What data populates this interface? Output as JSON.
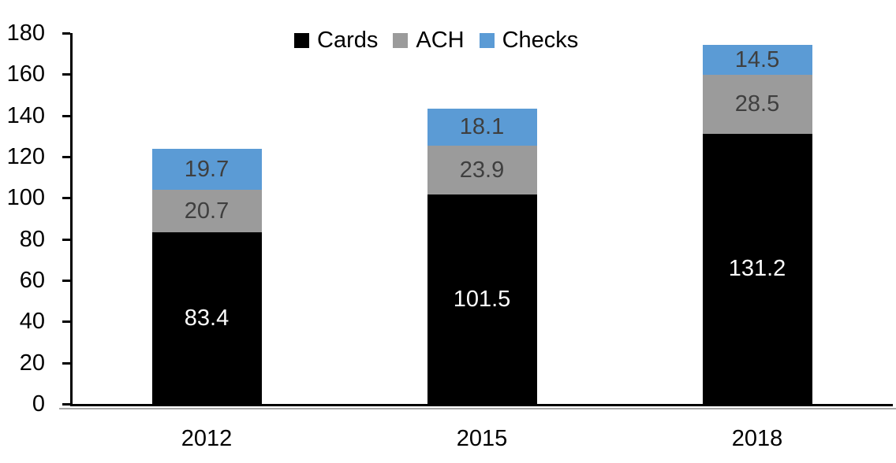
{
  "chart_data": {
    "type": "bar",
    "stacked": true,
    "title": "",
    "xlabel": "",
    "ylabel": "",
    "categories": [
      "2012",
      "2015",
      "2018"
    ],
    "series": [
      {
        "name": "Cards",
        "color": "#000000",
        "label_color": "#ffffff",
        "values": [
          83.4,
          101.5,
          131.2
        ]
      },
      {
        "name": "ACH",
        "color": "#9b9b9b",
        "label_color": "#3f3f3f",
        "values": [
          20.7,
          23.9,
          28.5
        ]
      },
      {
        "name": "Checks",
        "color": "#5b9bd5",
        "label_color": "#3f3f3f",
        "values": [
          19.7,
          18.1,
          14.5
        ]
      }
    ],
    "totals": [
      123.8,
      143.5,
      174.2
    ],
    "ylim": [
      0,
      180
    ],
    "ytick_interval": 20,
    "yticks": [
      "0",
      "20",
      "40",
      "60",
      "80",
      "100",
      "120",
      "140",
      "160",
      "180"
    ],
    "legend_position": "top-center",
    "grid": false,
    "data_labels": true,
    "axis_color": "#000000"
  }
}
